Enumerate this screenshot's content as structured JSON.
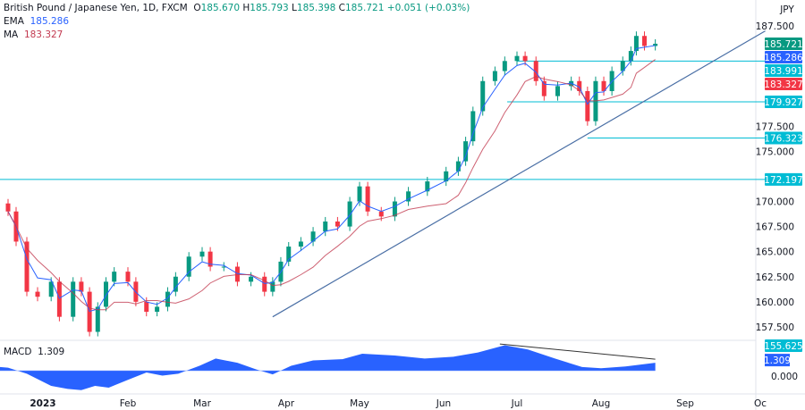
{
  "chart_data": {
    "type": "candlestick",
    "title": "British Pound / Japanese Yen, 1D, FXCM",
    "ohlc_readout": {
      "open_label": "O",
      "open": "185.670",
      "high_label": "H",
      "high": "185.793",
      "low_label": "L",
      "low": "185.398",
      "close_label": "C",
      "close": "185.721",
      "change": "+0.051 (+0.03%)"
    },
    "currency": "JPY",
    "indicators": {
      "ema": {
        "label": "EMA",
        "value": "185.286",
        "color": "#2962ff"
      },
      "ma": {
        "label": "MA",
        "value": "183.327",
        "color": "#c2394f"
      },
      "macd": {
        "label": "MACD",
        "value": "1.309",
        "color": "#2962ff"
      }
    },
    "y_ticks": [
      "187.500",
      "177.500",
      "175.000",
      "170.000",
      "167.500",
      "165.000",
      "162.500",
      "160.000",
      "157.500"
    ],
    "ylim": [
      155.0,
      189.5
    ],
    "macd_zero_label": "0.000",
    "x_ticks": [
      {
        "label": "2023",
        "date": "2023-01-01",
        "bold": true
      },
      {
        "label": "Feb",
        "date": "2023-02-01"
      },
      {
        "label": "Mar",
        "date": "2023-03-01"
      },
      {
        "label": "Apr",
        "date": "2023-04-01"
      },
      {
        "label": "May",
        "date": "2023-05-01"
      },
      {
        "label": "Jun",
        "date": "2023-06-01"
      },
      {
        "label": "Jul",
        "date": "2023-07-01"
      },
      {
        "label": "Aug",
        "date": "2023-08-01"
      },
      {
        "label": "Sep",
        "date": "2023-09-01"
      },
      {
        "label": "Oc",
        "date": "2023-10-01"
      }
    ],
    "price_tags": [
      {
        "value": "185.721",
        "price": 185.721,
        "color": "#089981"
      },
      {
        "value": "185.286",
        "price": 185.0,
        "color": "#2962ff"
      },
      {
        "value": "183.991",
        "price": 183.991,
        "color": "#00bcd4"
      },
      {
        "value": "183.327",
        "price": 182.6,
        "color": "#f23645"
      },
      {
        "value": "179.927",
        "price": 179.927,
        "color": "#00bcd4"
      },
      {
        "value": "176.323",
        "price": 176.323,
        "color": "#00bcd4"
      },
      {
        "value": "172.197",
        "price": 172.197,
        "color": "#00bcd4"
      },
      {
        "value": "155.625",
        "price": 155.625,
        "color": "#00bcd4"
      }
    ],
    "levels": [
      {
        "price": 183.991,
        "from": "2023-07-01"
      },
      {
        "price": 179.927,
        "from": "2023-06-27"
      },
      {
        "price": 176.323,
        "from": "2023-07-27"
      },
      {
        "price": 172.197,
        "from": "2022-12-01"
      }
    ],
    "trendline": {
      "from": [
        "2023-03-27",
        158.5
      ],
      "to": [
        "2023-10-03",
        187.0
      ],
      "color": "#4a6fa5"
    },
    "macd_trendline": {
      "from": [
        "2023-06-24",
        4.4
      ],
      "to": [
        "2023-08-21",
        1.9
      ]
    },
    "closes": [
      [
        "2022-12-19",
        169.0
      ],
      [
        "2022-12-22",
        166.0
      ],
      [
        "2022-12-26",
        161.0
      ],
      [
        "2022-12-30",
        160.5
      ],
      [
        "2023-01-04",
        162.0
      ],
      [
        "2023-01-07",
        158.5
      ],
      [
        "2023-01-12",
        162.0
      ],
      [
        "2023-01-15",
        161.0
      ],
      [
        "2023-01-18",
        157.0
      ],
      [
        "2023-01-21",
        159.5
      ],
      [
        "2023-01-24",
        162.0
      ],
      [
        "2023-01-27",
        163.0
      ],
      [
        "2023-02-01",
        162.0
      ],
      [
        "2023-02-04",
        160.0
      ],
      [
        "2023-02-08",
        159.0
      ],
      [
        "2023-02-12",
        159.5
      ],
      [
        "2023-02-16",
        161.0
      ],
      [
        "2023-02-19",
        162.5
      ],
      [
        "2023-02-24",
        164.5
      ],
      [
        "2023-03-01",
        165.0
      ],
      [
        "2023-03-04",
        163.5
      ],
      [
        "2023-03-09",
        163.5
      ],
      [
        "2023-03-14",
        162.0
      ],
      [
        "2023-03-19",
        162.5
      ],
      [
        "2023-03-24",
        161.0
      ],
      [
        "2023-03-27",
        162.0
      ],
      [
        "2023-03-30",
        164.0
      ],
      [
        "2023-04-02",
        165.5
      ],
      [
        "2023-04-07",
        166.0
      ],
      [
        "2023-04-12",
        167.0
      ],
      [
        "2023-04-17",
        168.0
      ],
      [
        "2023-04-22",
        167.5
      ],
      [
        "2023-04-27",
        170.0
      ],
      [
        "2023-05-01",
        171.5
      ],
      [
        "2023-05-04",
        169.0
      ],
      [
        "2023-05-09",
        168.5
      ],
      [
        "2023-05-14",
        170.0
      ],
      [
        "2023-05-19",
        171.0
      ],
      [
        "2023-05-26",
        172.0
      ],
      [
        "2023-06-02",
        173.0
      ],
      [
        "2023-06-07",
        174.0
      ],
      [
        "2023-06-10",
        176.0
      ],
      [
        "2023-06-13",
        179.0
      ],
      [
        "2023-06-17",
        182.0
      ],
      [
        "2023-06-22",
        183.0
      ],
      [
        "2023-06-26",
        184.0
      ],
      [
        "2023-07-01",
        184.5
      ],
      [
        "2023-07-04",
        184.0
      ],
      [
        "2023-07-08",
        182.0
      ],
      [
        "2023-07-11",
        180.5
      ],
      [
        "2023-07-16",
        181.5
      ],
      [
        "2023-07-21",
        182.0
      ],
      [
        "2023-07-24",
        181.0
      ],
      [
        "2023-07-27",
        178.0
      ],
      [
        "2023-07-30",
        182.0
      ],
      [
        "2023-08-02",
        181.0
      ],
      [
        "2023-08-05",
        183.0
      ],
      [
        "2023-08-09",
        184.0
      ],
      [
        "2023-08-12",
        185.0
      ],
      [
        "2023-08-14",
        186.5
      ],
      [
        "2023-08-17",
        185.5
      ],
      [
        "2023-08-21",
        185.721
      ]
    ],
    "macd_values": [
      [
        "2022-12-10",
        0.6
      ],
      [
        "2022-12-19",
        0.5
      ],
      [
        "2022-12-26",
        -0.5
      ],
      [
        "2023-01-04",
        -2.5
      ],
      [
        "2023-01-10",
        -3.0
      ],
      [
        "2023-01-15",
        -3.2
      ],
      [
        "2023-01-20",
        -2.5
      ],
      [
        "2023-01-25",
        -2.8
      ],
      [
        "2023-02-01",
        -1.5
      ],
      [
        "2023-02-08",
        -0.3
      ],
      [
        "2023-02-14",
        -0.8
      ],
      [
        "2023-02-20",
        -0.5
      ],
      [
        "2023-02-28",
        0.8
      ],
      [
        "2023-03-06",
        2.0
      ],
      [
        "2023-03-14",
        1.3
      ],
      [
        "2023-03-21",
        0.2
      ],
      [
        "2023-03-27",
        -0.6
      ],
      [
        "2023-04-03",
        0.8
      ],
      [
        "2023-04-12",
        1.7
      ],
      [
        "2023-04-24",
        1.9
      ],
      [
        "2023-05-02",
        2.8
      ],
      [
        "2023-05-14",
        2.5
      ],
      [
        "2023-05-25",
        2.0
      ],
      [
        "2023-06-05",
        2.3
      ],
      [
        "2023-06-15",
        3.0
      ],
      [
        "2023-06-26",
        4.2
      ],
      [
        "2023-07-05",
        3.5
      ],
      [
        "2023-07-15",
        2.0
      ],
      [
        "2023-07-25",
        0.6
      ],
      [
        "2023-08-01",
        0.4
      ],
      [
        "2023-08-10",
        0.7
      ],
      [
        "2023-08-21",
        1.309
      ]
    ],
    "up_color": "#089981",
    "down_color": "#f23645",
    "level_color": "#00bcd4"
  }
}
